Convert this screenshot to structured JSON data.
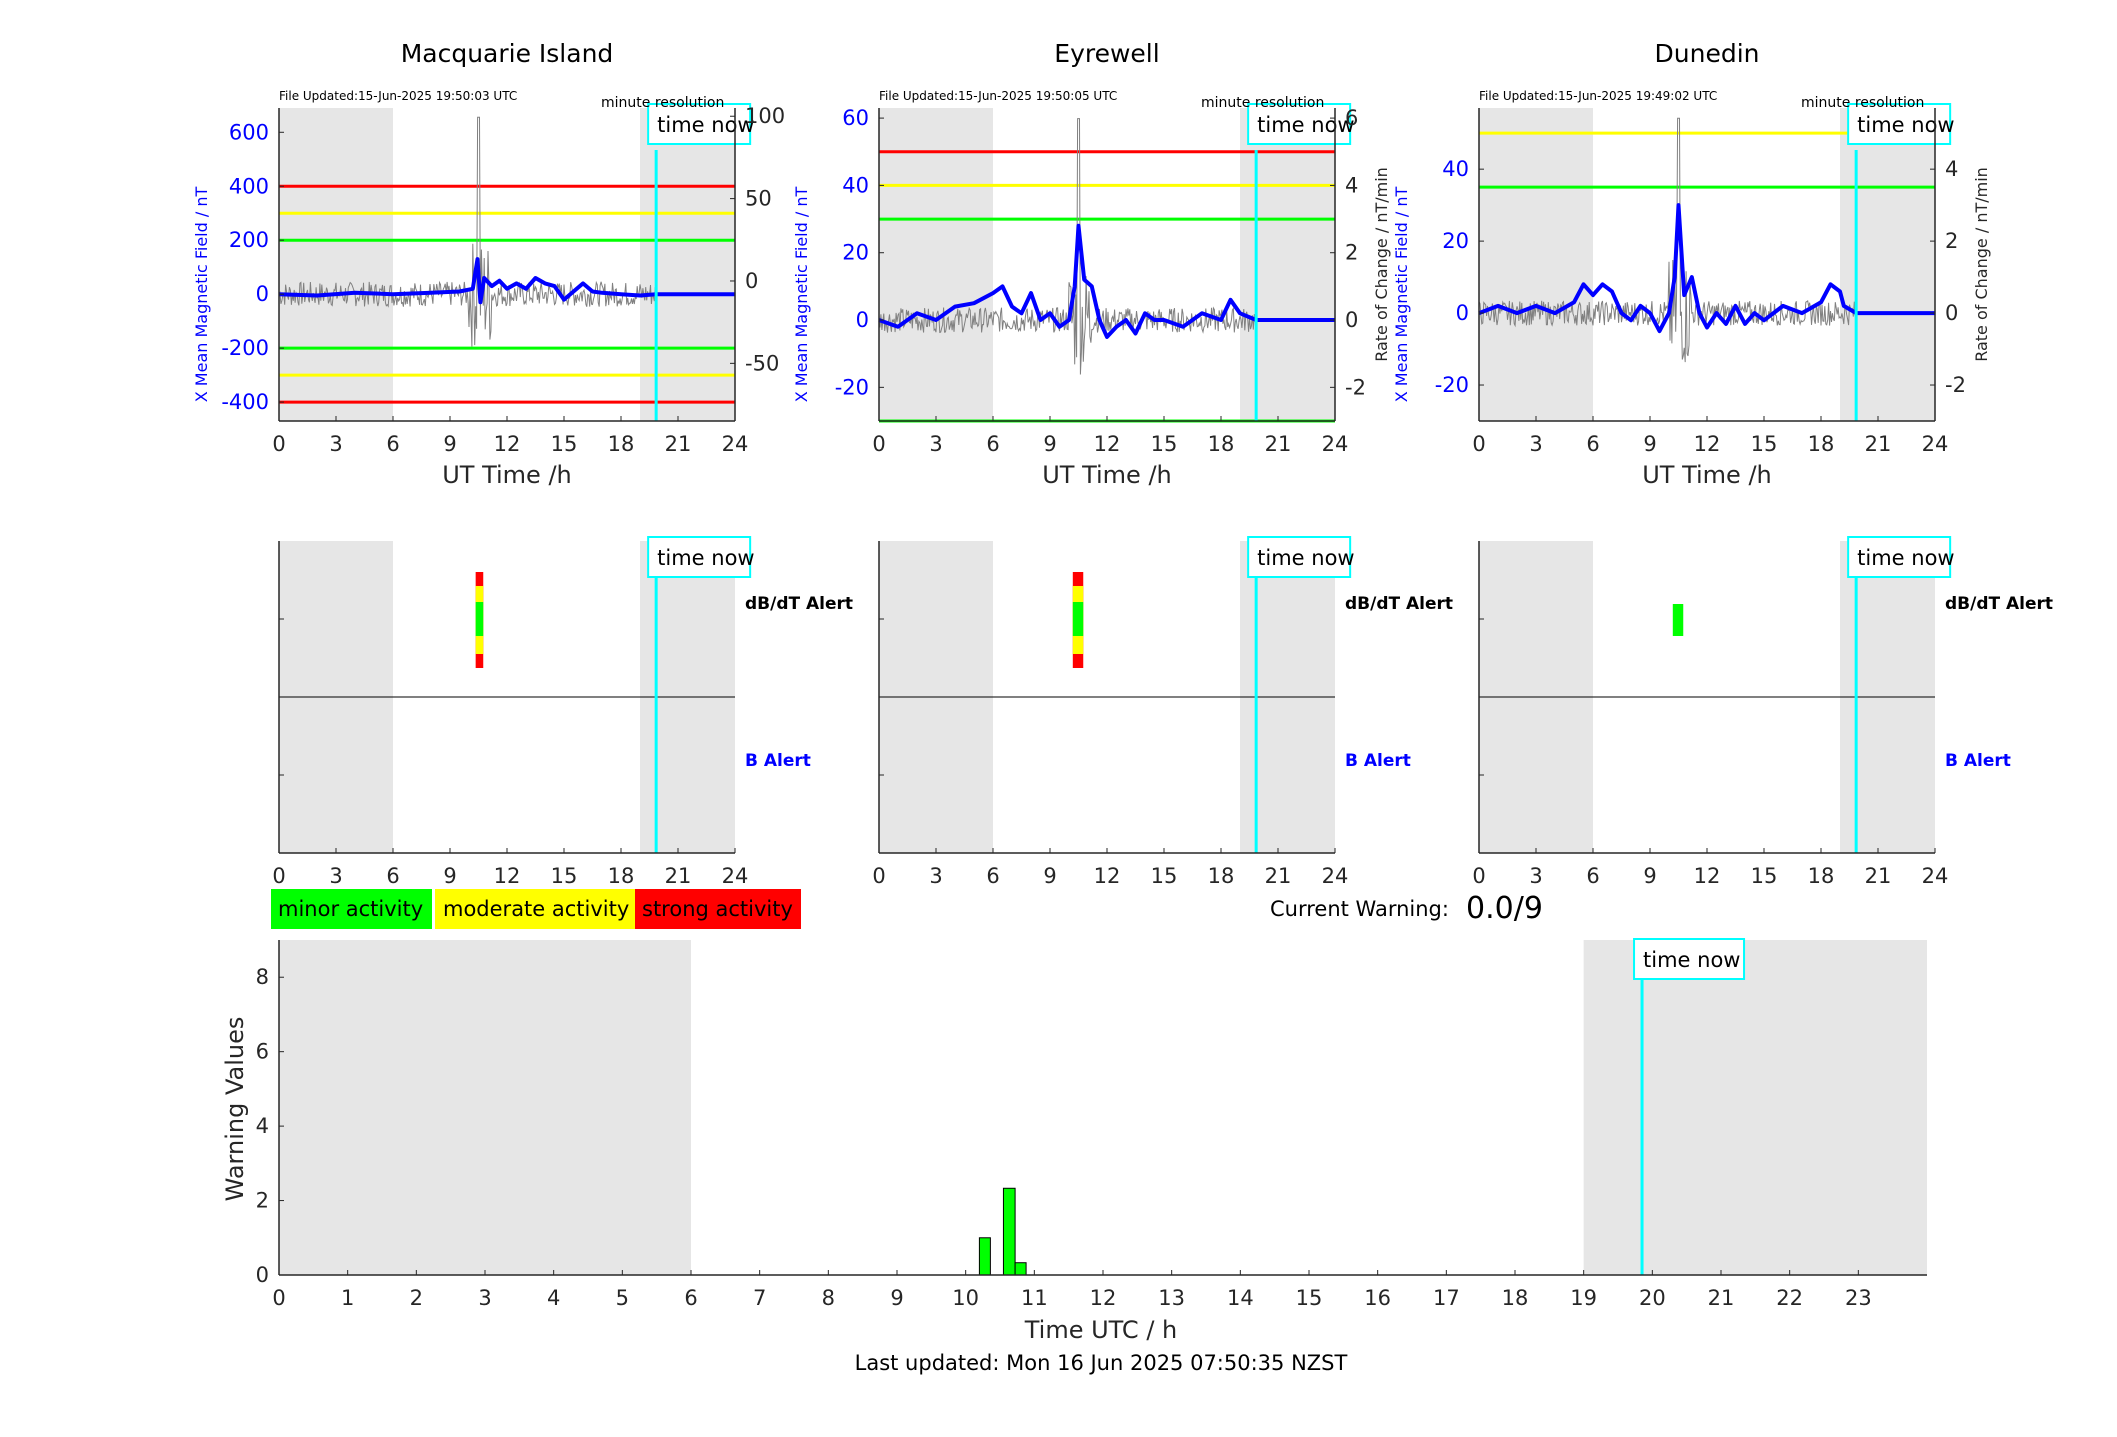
{
  "colors": {
    "shade": "#e6e6e6",
    "mag": "#0000ff",
    "rate": "#808080",
    "red": "#ff0000",
    "yellow": "#ffff00",
    "green": "#00ff00",
    "cyan": "#00ffff",
    "axis": "#262626"
  },
  "shading": {
    "night_start_h": 0,
    "night_end_h": 6,
    "late_start_h": 19,
    "late_end_h": 24,
    "time_now_h": 19.85
  },
  "labels": {
    "time_now": "time now",
    "file_updated_prefix": "File Updated:",
    "minute_resolution": "minute resolution",
    "x_axis": "UT Time /h",
    "y_left": "X Mean Magnetic Field / nT",
    "y_right": "Rate of Change / nT/min",
    "dbdt_alert": "dB/dT Alert",
    "b_alert": "B Alert",
    "current_warning_label": "Current Warning:",
    "current_warning_value": "0.0/9",
    "warning_y_axis": "Warning Values",
    "warning_x_axis": "Time UTC / h",
    "last_updated": "Last updated: Mon 16 Jun 2025 07:50:35 NZST"
  },
  "legend": [
    {
      "label": "minor activity",
      "color": "#00ff00"
    },
    {
      "label": "moderate activity",
      "color": "#ffff00"
    },
    {
      "label": "strong activity",
      "color": "#ff0000"
    }
  ],
  "chart_data": [
    {
      "type": "line",
      "station": "Macquarie Island",
      "file_updated": "15-Jun-2025 19:50:03 UTC",
      "xlabel": "UT Time /h",
      "ylabel": "X Mean Magnetic Field / nT",
      "y2label": "",
      "xlim": [
        0,
        24
      ],
      "ylim": [
        -470,
        690
      ],
      "y_ticks": [
        -400,
        -200,
        0,
        200,
        400,
        600
      ],
      "y2lim": [
        -85,
        105
      ],
      "y2_ticks": [
        -50,
        0,
        50,
        100
      ],
      "x_ticks": [
        0,
        3,
        6,
        9,
        12,
        15,
        18,
        21,
        24
      ],
      "thresholds": [
        {
          "value": 400,
          "color": "#ff0000"
        },
        {
          "value": 300,
          "color": "#ffff00"
        },
        {
          "value": 200,
          "color": "#00ff00"
        },
        {
          "value": -200,
          "color": "#00ff00"
        },
        {
          "value": -300,
          "color": "#ffff00"
        },
        {
          "value": -400,
          "color": "#ff0000"
        }
      ],
      "series": [
        {
          "values_x": [
            0,
            2,
            4,
            6,
            8,
            9.5,
            10.2,
            10.45,
            10.6,
            10.8,
            11.2,
            11.6,
            12,
            12.5,
            13,
            13.5,
            14,
            14.5,
            15,
            15.5,
            16,
            16.5,
            17,
            18,
            19,
            19.85,
            24
          ],
          "values_y": [
            0,
            -5,
            5,
            0,
            5,
            10,
            20,
            130,
            -30,
            60,
            30,
            50,
            20,
            40,
            20,
            60,
            40,
            30,
            -20,
            10,
            40,
            10,
            5,
            0,
            -5,
            0,
            0
          ]
        }
      ]
    },
    {
      "type": "line",
      "station": "Eyrewell",
      "file_updated": "15-Jun-2025 19:50:05 UTC",
      "xlabel": "UT Time /h",
      "ylabel": "X Mean Magnetic Field / nT",
      "y2label": "Rate of Change / nT/min",
      "xlim": [
        0,
        24
      ],
      "ylim": [
        -30,
        63
      ],
      "y_ticks": [
        -20,
        0,
        20,
        40,
        60
      ],
      "y2lim": [
        -3,
        6.3
      ],
      "y2_ticks": [
        -2,
        0,
        2,
        4,
        6
      ],
      "x_ticks": [
        0,
        3,
        6,
        9,
        12,
        15,
        18,
        21,
        24
      ],
      "thresholds": [
        {
          "value": 50,
          "color": "#ff0000"
        },
        {
          "value": 40,
          "color": "#ffff00"
        },
        {
          "value": 30,
          "color": "#00ff00"
        },
        {
          "value": -30,
          "color": "#00ff00"
        }
      ],
      "series": [
        {
          "values_x": [
            0,
            1,
            2,
            3,
            4,
            5,
            6,
            6.5,
            7,
            7.5,
            8,
            8.5,
            9,
            9.5,
            10,
            10.3,
            10.5,
            10.8,
            11.2,
            11.6,
            12,
            12.5,
            13,
            13.5,
            14,
            14.5,
            15,
            16,
            17,
            18,
            18.5,
            19,
            19.85,
            24
          ],
          "values_y": [
            0,
            -2,
            2,
            0,
            4,
            5,
            8,
            10,
            4,
            2,
            8,
            0,
            2,
            -2,
            0,
            10,
            28,
            12,
            10,
            0,
            -5,
            -2,
            0,
            -4,
            2,
            0,
            0,
            -2,
            2,
            0,
            6,
            2,
            0,
            0
          ]
        }
      ]
    },
    {
      "type": "line",
      "station": "Dunedin",
      "file_updated": "15-Jun-2025 19:49:02 UTC",
      "xlabel": "UT Time /h",
      "ylabel": "X Mean Magnetic Field / nT",
      "y2label": "Rate of Change / nT/min",
      "xlim": [
        0,
        24
      ],
      "ylim": [
        -30,
        57
      ],
      "y_ticks": [
        -20,
        0,
        20,
        40
      ],
      "y2lim": [
        -3,
        5.7
      ],
      "y2_ticks": [
        -2,
        0,
        2,
        4
      ],
      "x_ticks": [
        0,
        3,
        6,
        9,
        12,
        15,
        18,
        21,
        24
      ],
      "thresholds": [
        {
          "value": 50,
          "color": "#ffff00"
        },
        {
          "value": 35,
          "color": "#00ff00"
        }
      ],
      "series": [
        {
          "values_x": [
            0,
            1,
            2,
            3,
            4,
            5,
            5.5,
            6,
            6.5,
            7,
            7.5,
            8,
            8.5,
            9,
            9.5,
            10,
            10.3,
            10.5,
            10.8,
            11.2,
            11.6,
            12,
            12.5,
            13,
            13.5,
            14,
            14.5,
            15,
            16,
            17,
            18,
            18.5,
            19,
            19.2,
            19.85,
            24
          ],
          "values_y": [
            0,
            2,
            0,
            2,
            0,
            3,
            8,
            5,
            8,
            6,
            0,
            -2,
            2,
            0,
            -5,
            0,
            10,
            30,
            5,
            10,
            0,
            -4,
            0,
            -3,
            2,
            -3,
            0,
            -2,
            2,
            0,
            3,
            8,
            6,
            2,
            0,
            0
          ]
        }
      ]
    },
    {
      "type": "bar",
      "panel": "alerts",
      "stations": [
        "Macquarie Island",
        "Eyrewell",
        "Dunedin"
      ],
      "rows": [
        "dB/dT Alert",
        "B Alert"
      ],
      "x_ticks": [
        0,
        3,
        6,
        9,
        12,
        15,
        18,
        21,
        24
      ],
      "alerts": [
        {
          "station": "Macquarie Island",
          "row": "dB/dT Alert",
          "x_start_h": 10.35,
          "x_end_h": 10.75,
          "level": "strong"
        },
        {
          "station": "Eyrewell",
          "row": "dB/dT Alert",
          "x_start_h": 10.2,
          "x_end_h": 10.75,
          "level": "strong"
        },
        {
          "station": "Dunedin",
          "row": "dB/dT Alert",
          "x_start_h": 10.2,
          "x_end_h": 10.75,
          "level": "minor"
        }
      ]
    },
    {
      "type": "bar",
      "panel": "warning",
      "xlabel": "Time UTC / h",
      "ylabel": "Warning Values",
      "xlim": [
        0,
        24
      ],
      "ylim": [
        0,
        9
      ],
      "x_ticks": [
        0,
        1,
        2,
        3,
        4,
        5,
        6,
        7,
        8,
        9,
        10,
        11,
        12,
        13,
        14,
        15,
        16,
        17,
        18,
        19,
        20,
        21,
        22,
        23
      ],
      "y_ticks": [
        0,
        2,
        4,
        6,
        8
      ],
      "bars": [
        {
          "x_start_h": 10.2,
          "x_end_h": 10.36,
          "value": 1.0
        },
        {
          "x_start_h": 10.55,
          "x_end_h": 10.72,
          "value": 2.33
        },
        {
          "x_start_h": 10.72,
          "x_end_h": 10.88,
          "value": 0.33
        }
      ]
    }
  ]
}
